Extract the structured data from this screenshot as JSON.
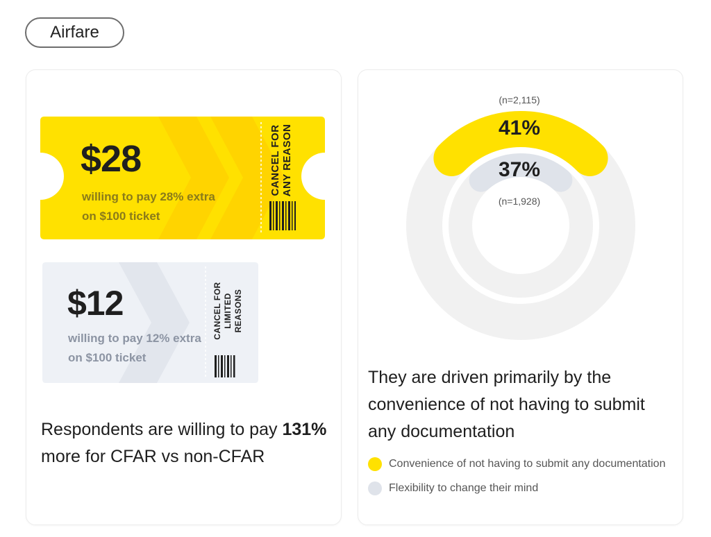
{
  "category_pill": "Airfare",
  "tickets": [
    {
      "price": "$28",
      "desc_line1": "willing to pay 28% extra",
      "desc_line2": "on $100 ticket",
      "stub": "CANCEL FOR\nANY REASON",
      "color": "#ffe100",
      "chevron_color": "#ffd400"
    },
    {
      "price": "$12",
      "desc_line1": "willing to pay 12% extra",
      "desc_line2": "on $100 ticket",
      "stub": "CANCEL FOR\nLIMITED REASONS",
      "color": "#eef1f6",
      "chevron_color": "#e2e6ed"
    }
  ],
  "left_headline": {
    "pre": "Respondents are willing to pay ",
    "bold": "131%",
    "post": " more for CFAR vs non-CFAR"
  },
  "chart_data": {
    "type": "radial-bar",
    "series": [
      {
        "name": "Convenience of not having to submit any documentation",
        "value": 41,
        "label": "41%",
        "n": "(n=2,115)",
        "color": "#ffe100"
      },
      {
        "name": "Flexibility to change their mind",
        "value": 37,
        "label": "37%",
        "n": "(n=1,928)",
        "color": "#dfe3ea"
      }
    ],
    "track_color": "#f1f1f1"
  },
  "right_headline": "They are driven primarily by the convenience of not having to submit any documentation",
  "legend": [
    {
      "label": "Convenience of not having to submit any documentation",
      "color": "#ffe100"
    },
    {
      "label": "Flexibility to change their mind",
      "color": "#dfe3ea"
    }
  ]
}
